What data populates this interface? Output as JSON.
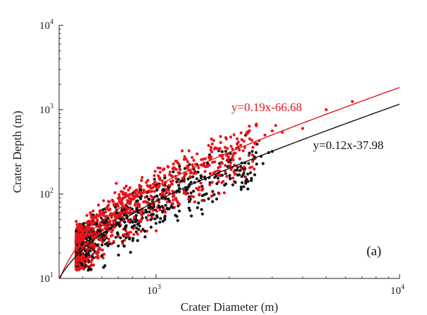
{
  "chart_data": {
    "type": "scatter",
    "xscale": "log",
    "yscale": "log",
    "xlim": [
      400,
      10000
    ],
    "ylim": [
      10,
      10000
    ],
    "xlabel": "Crater Diameter (m)",
    "ylabel": "Crater Depth (m)",
    "xticks": [
      {
        "value": 1000,
        "base": "10",
        "exp": "3"
      },
      {
        "value": 10000,
        "base": "10",
        "exp": "4"
      }
    ],
    "yticks": [
      {
        "value": 10,
        "base": "10",
        "exp": "1"
      },
      {
        "value": 100,
        "base": "10",
        "exp": "2"
      },
      {
        "value": 1000,
        "base": "10",
        "exp": "3"
      },
      {
        "value": 10000,
        "base": "10",
        "exp": "4"
      }
    ],
    "panel_label": "(a)",
    "grid": false,
    "series": [
      {
        "color": "#e8141a",
        "equation": "y=0.19x-66.68",
        "fit": {
          "slope": 0.19,
          "intercept": -66.68
        },
        "cloud": {
          "x_min": 470,
          "x_max": 2600,
          "n": 900,
          "scatter_low": 0.42,
          "scatter_high": 1.45,
          "floor": 12.5
        },
        "outliers": [
          [
            3000,
            560
          ],
          [
            3100,
            650
          ],
          [
            3300,
            540
          ],
          [
            4000,
            600
          ],
          [
            5000,
            1000
          ],
          [
            6400,
            1250
          ],
          [
            2800,
            500
          ],
          [
            2650,
            430
          ]
        ]
      },
      {
        "color": "#111111",
        "equation": "y=0.12x-37.98",
        "fit": {
          "slope": 0.12,
          "intercept": -37.98
        },
        "cloud": {
          "x_min": 470,
          "x_max": 2600,
          "n": 650,
          "scatter_low": 0.45,
          "scatter_high": 1.5,
          "floor": 12.5
        },
        "outliers": [
          [
            2700,
            280
          ],
          [
            2900,
            310
          ],
          [
            3000,
            320
          ],
          [
            2750,
            230
          ],
          [
            2600,
            390
          ]
        ]
      }
    ]
  }
}
